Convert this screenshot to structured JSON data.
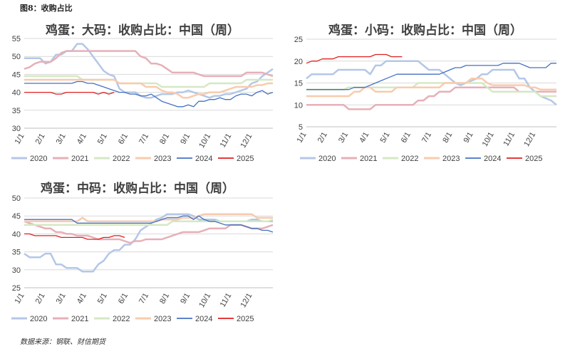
{
  "figure_label": "图8：收购占比",
  "source": "数据来源：钢联、财信期货",
  "chart_data": [
    {
      "id": "large",
      "type": "line",
      "title": "鸡蛋：大码：收购占比：中国（周）",
      "ylim": [
        30,
        55
      ],
      "yticks": [
        30,
        35,
        40,
        45,
        50,
        55
      ],
      "x_ticks": [
        "1/1",
        "2/1",
        "3/1",
        "4/1",
        "5/1",
        "6/1",
        "7/1",
        "8/1",
        "9/1",
        "10/1",
        "11/1",
        "12/1"
      ],
      "grid": true,
      "legend_position": "bottom",
      "series": [
        {
          "name": "2020",
          "color": "#b4c7e7",
          "width": 2.5,
          "values": [
            49.5,
            49.5,
            49.5,
            49.5,
            48.0,
            48.5,
            50.5,
            50.5,
            51.5,
            51.5,
            53.5,
            53.5,
            52.0,
            50.0,
            48.0,
            46.0,
            45.0,
            44.5,
            41.0,
            40.0,
            40.0,
            40.0,
            39.0,
            38.5,
            38.5,
            39.0,
            39.5,
            39.5,
            39.5,
            40.0,
            40.0,
            40.5,
            40.0,
            39.5,
            39.0,
            38.5,
            39.0,
            39.0,
            39.5,
            39.5,
            40.0,
            40.5,
            41.0,
            42.5,
            43.0,
            44.5,
            45.5,
            46.5
          ]
        },
        {
          "name": "2021",
          "color": "#e6b0b8",
          "width": 2.5,
          "values": [
            46.5,
            47.0,
            48.0,
            48.5,
            48.5,
            48.5,
            49.5,
            51.0,
            51.5,
            51.5,
            51.5,
            51.5,
            51.5,
            51.5,
            51.5,
            51.5,
            51.5,
            51.5,
            51.5,
            51.5,
            51.5,
            51.5,
            50.0,
            49.5,
            48.0,
            48.0,
            47.5,
            46.5,
            45.5,
            45.5,
            45.5,
            45.5,
            45.5,
            45.0,
            44.5,
            44.5,
            44.5,
            44.5,
            44.5,
            44.5,
            44.5,
            44.5,
            45.5,
            45.5,
            45.5,
            45.5,
            45.0,
            44.5
          ]
        },
        {
          "name": "2022",
          "color": "#d5e8c4",
          "width": 2.5,
          "values": [
            44.5,
            44.5,
            44.5,
            44.5,
            44.5,
            44.5,
            44.5,
            44.5,
            44.5,
            44.5,
            44.5,
            43.5,
            43.5,
            43.5,
            43.5,
            43.5,
            43.5,
            43.5,
            42.5,
            42.5,
            42.5,
            42.5,
            42.5,
            42.5,
            42.5,
            42.5,
            41.5,
            41.5,
            41.5,
            41.5,
            41.5,
            41.5,
            41.5,
            41.5,
            41.5,
            42.5,
            42.5,
            42.5,
            42.5,
            42.5,
            42.5,
            42.5,
            43.5,
            43.5,
            43.5,
            43.5,
            43.5,
            43.5
          ]
        },
        {
          "name": "2023",
          "color": "#f8cbad",
          "width": 2.5,
          "values": [
            43.5,
            43.5,
            43.5,
            43.5,
            43.5,
            43.5,
            43.5,
            43.5,
            43.5,
            43.5,
            43.5,
            43.5,
            43.5,
            43.5,
            43.5,
            43.5,
            43.5,
            43.5,
            42.5,
            42.5,
            42.5,
            42.5,
            42.5,
            41.5,
            41.5,
            41.5,
            40.5,
            40.0,
            40.0,
            39.5,
            38.5,
            38.5,
            39.0,
            39.5,
            39.5,
            40.0,
            40.0,
            40.0,
            40.5,
            41.0,
            41.5,
            41.5,
            41.5,
            41.5,
            42.0,
            42.0,
            42.5,
            42.5
          ]
        },
        {
          "name": "2024",
          "color": "#4472c4",
          "width": 1.3,
          "values": [
            42.5,
            42.5,
            42.5,
            42.5,
            42.5,
            42.5,
            42.5,
            42.5,
            42.5,
            42.5,
            43.0,
            43.0,
            42.5,
            42.5,
            42.0,
            41.5,
            41.0,
            40.5,
            40.0,
            40.0,
            39.5,
            39.5,
            39.0,
            39.0,
            39.5,
            38.5,
            37.5,
            37.0,
            36.5,
            36.0,
            36.0,
            36.5,
            36.0,
            37.5,
            37.5,
            38.0,
            38.0,
            38.5,
            38.0,
            38.0,
            39.0,
            39.5,
            39.5,
            39.0,
            40.0,
            40.5,
            39.5,
            40.0
          ]
        },
        {
          "name": "2025",
          "color": "#e02020",
          "width": 1.3,
          "values": [
            40.0,
            40.0,
            40.0,
            40.0,
            40.0,
            40.0,
            39.5,
            39.5,
            40.0,
            40.0,
            40.0,
            40.0,
            40.0,
            40.0,
            39.5,
            40.0,
            39.5,
            40.0,
            null,
            null,
            null,
            null,
            null,
            null,
            null,
            null,
            null,
            null,
            null,
            null,
            null,
            null,
            null,
            null,
            null,
            null,
            null,
            null,
            null,
            null,
            null,
            null,
            null,
            null,
            null,
            null,
            null,
            null
          ]
        }
      ]
    },
    {
      "id": "small",
      "type": "line",
      "title": "鸡蛋：小码：收购占比：中国（周）",
      "ylim": [
        5,
        25
      ],
      "yticks": [
        5,
        10,
        15,
        20,
        25
      ],
      "x_ticks": [
        "1/1",
        "2/1",
        "3/1",
        "4/1",
        "5/1",
        "6/1",
        "7/1",
        "8/1",
        "9/1",
        "10/1",
        "11/1",
        "12/1"
      ],
      "grid": true,
      "legend_position": "bottom",
      "series": [
        {
          "name": "2020",
          "color": "#b4c7e7",
          "width": 2.5,
          "values": [
            16.0,
            17.0,
            17.0,
            17.0,
            17.0,
            17.0,
            18.0,
            18.0,
            18.0,
            18.0,
            18.0,
            18.0,
            17.0,
            19.0,
            19.0,
            20.0,
            20.0,
            20.0,
            20.0,
            20.0,
            20.0,
            20.0,
            19.0,
            18.0,
            18.0,
            18.0,
            17.0,
            16.0,
            15.0,
            14.5,
            15.0,
            15.5,
            16.0,
            17.0,
            17.0,
            18.0,
            18.0,
            18.0,
            18.0,
            18.0,
            16.0,
            16.0,
            14.0,
            13.0,
            12.0,
            11.5,
            11.0,
            10.0
          ]
        },
        {
          "name": "2021",
          "color": "#e6b0b8",
          "width": 2.5,
          "values": [
            10.0,
            10.0,
            10.0,
            10.0,
            10.0,
            10.0,
            10.0,
            10.0,
            9.0,
            9.0,
            9.0,
            9.0,
            9.0,
            10.0,
            10.0,
            10.0,
            10.0,
            10.0,
            10.0,
            10.0,
            10.0,
            11.0,
            11.0,
            12.0,
            12.0,
            13.0,
            13.0,
            13.0,
            14.0,
            14.0,
            14.0,
            14.0,
            14.0,
            14.0,
            14.0,
            14.0,
            14.0,
            14.0,
            14.0,
            14.0,
            13.0,
            13.0,
            13.0,
            13.0,
            13.0,
            13.0,
            13.0,
            13.0
          ]
        },
        {
          "name": "2022",
          "color": "#d5e8c4",
          "width": 2.5,
          "values": [
            13.5,
            13.5,
            13.5,
            13.5,
            13.5,
            13.5,
            13.5,
            13.5,
            14.0,
            14.0,
            14.0,
            14.0,
            14.0,
            14.0,
            14.0,
            14.0,
            14.0,
            14.0,
            14.0,
            14.0,
            14.0,
            15.0,
            15.0,
            15.0,
            15.0,
            15.0,
            15.0,
            15.0,
            15.0,
            15.0,
            15.0,
            15.0,
            15.0,
            15.0,
            14.0,
            13.0,
            13.0,
            13.0,
            13.0,
            13.0,
            13.0,
            13.0,
            13.0,
            13.0,
            12.0,
            12.0,
            12.0,
            12.0
          ]
        },
        {
          "name": "2023",
          "color": "#f8cbad",
          "width": 2.5,
          "values": [
            12.0,
            12.0,
            12.0,
            12.0,
            12.0,
            12.0,
            12.0,
            12.0,
            12.0,
            13.0,
            13.0,
            14.0,
            14.0,
            13.0,
            13.0,
            13.0,
            13.0,
            14.0,
            14.0,
            14.0,
            14.0,
            14.0,
            14.0,
            14.0,
            14.0,
            14.0,
            15.0,
            15.0,
            15.0,
            15.0,
            15.0,
            16.0,
            16.0,
            16.0,
            15.0,
            14.5,
            14.5,
            14.5,
            14.5,
            14.5,
            14.5,
            14.5,
            14.0,
            14.0,
            13.5,
            13.5,
            13.5,
            13.5
          ]
        },
        {
          "name": "2024",
          "color": "#4472c4",
          "width": 1.3,
          "values": [
            13.5,
            13.5,
            13.5,
            13.5,
            13.5,
            13.5,
            13.5,
            13.5,
            13.5,
            14.0,
            14.0,
            14.0,
            14.5,
            15.0,
            15.5,
            16.0,
            16.5,
            17.0,
            17.0,
            17.0,
            17.0,
            17.0,
            17.0,
            17.0,
            17.0,
            17.0,
            17.5,
            18.0,
            18.5,
            18.5,
            19.0,
            19.0,
            19.0,
            19.0,
            19.0,
            19.0,
            19.0,
            19.5,
            19.5,
            19.5,
            19.5,
            19.0,
            18.5,
            18.5,
            18.5,
            18.5,
            19.5,
            19.5
          ]
        },
        {
          "name": "2025",
          "color": "#e02020",
          "width": 1.3,
          "values": [
            19.5,
            20.0,
            20.0,
            20.5,
            20.5,
            20.5,
            21.0,
            21.0,
            21.0,
            21.0,
            21.0,
            21.0,
            21.0,
            21.5,
            21.5,
            21.5,
            21.0,
            21.0,
            21.0,
            null,
            null,
            null,
            null,
            null,
            null,
            null,
            null,
            null,
            null,
            null,
            null,
            null,
            null,
            null,
            null,
            null,
            null,
            null,
            null,
            null,
            null,
            null,
            null,
            null,
            null,
            null,
            null,
            null
          ]
        }
      ]
    },
    {
      "id": "medium",
      "type": "line",
      "title": "鸡蛋：中码：收购占比：中国（周）",
      "ylim": [
        25,
        50
      ],
      "yticks": [
        25,
        30,
        35,
        40,
        45,
        50
      ],
      "x_ticks": [
        "1/1",
        "2/1",
        "3/1",
        "4/1",
        "5/1",
        "6/1",
        "7/1",
        "8/1",
        "9/1",
        "10/1",
        "11/1",
        "12/1"
      ],
      "grid": true,
      "legend_position": "bottom",
      "series": [
        {
          "name": "2020",
          "color": "#b4c7e7",
          "width": 2.5,
          "values": [
            34.5,
            33.5,
            33.5,
            33.5,
            34.5,
            34.5,
            31.5,
            31.5,
            30.5,
            30.5,
            30.5,
            29.5,
            29.5,
            29.5,
            31.5,
            32.5,
            34.5,
            35.5,
            35.5,
            37.0,
            37.0,
            38.5,
            41.0,
            42.0,
            43.0,
            44.0,
            44.5,
            45.5,
            45.5,
            45.5,
            45.5,
            45.5,
            45.0,
            44.0,
            44.0,
            44.0,
            44.0,
            43.5,
            43.5,
            43.5,
            43.5,
            43.5,
            43.5,
            44.0,
            44.0,
            43.5,
            43.5,
            43.5
          ]
        },
        {
          "name": "2021",
          "color": "#e6b0b8",
          "width": 2.5,
          "values": [
            43.5,
            43.0,
            42.5,
            42.0,
            41.5,
            41.5,
            40.5,
            40.5,
            40.0,
            40.0,
            39.5,
            39.5,
            39.5,
            39.0,
            38.5,
            38.5,
            38.5,
            38.5,
            38.5,
            38.0,
            37.5,
            38.0,
            38.0,
            38.5,
            38.5,
            38.5,
            38.5,
            39.0,
            39.5,
            40.0,
            40.5,
            40.5,
            40.5,
            40.5,
            41.0,
            41.5,
            41.5,
            41.5,
            41.5,
            42.5,
            42.5,
            42.5,
            42.0,
            41.5,
            41.5,
            41.5,
            42.0,
            42.5
          ]
        },
        {
          "name": "2022",
          "color": "#d5e8c4",
          "width": 2.5,
          "values": [
            42.5,
            42.5,
            42.5,
            42.5,
            42.5,
            42.5,
            42.5,
            42.5,
            42.5,
            42.5,
            42.5,
            42.5,
            42.5,
            42.5,
            42.5,
            42.5,
            42.5,
            42.5,
            42.5,
            42.5,
            42.5,
            42.5,
            42.5,
            42.5,
            42.5,
            42.5,
            42.5,
            42.5,
            43.5,
            43.5,
            43.5,
            43.5,
            43.5,
            43.5,
            43.5,
            43.5,
            43.5,
            43.5,
            43.5,
            43.5,
            43.5,
            43.5,
            43.5,
            43.5,
            43.5,
            43.5,
            43.5,
            44.0
          ]
        },
        {
          "name": "2023",
          "color": "#f8cbad",
          "width": 2.5,
          "values": [
            43.5,
            43.5,
            43.5,
            43.5,
            43.5,
            43.5,
            43.5,
            43.5,
            43.5,
            43.5,
            43.5,
            44.5,
            43.5,
            43.5,
            43.5,
            43.5,
            43.5,
            43.5,
            43.5,
            43.5,
            43.5,
            43.5,
            43.5,
            43.5,
            43.5,
            43.5,
            44.0,
            44.0,
            44.0,
            44.0,
            44.5,
            44.5,
            44.5,
            45.0,
            45.5,
            45.5,
            45.5,
            45.5,
            45.5,
            45.5,
            45.5,
            45.5,
            45.5,
            45.5,
            44.5,
            44.5,
            44.5,
            44.5
          ]
        },
        {
          "name": "2024",
          "color": "#4472c4",
          "width": 1.3,
          "values": [
            44.0,
            44.0,
            44.0,
            44.0,
            44.0,
            44.0,
            44.0,
            44.0,
            44.0,
            44.0,
            43.0,
            43.0,
            43.0,
            43.0,
            43.0,
            43.0,
            43.0,
            43.0,
            43.0,
            43.0,
            43.0,
            43.0,
            43.0,
            43.0,
            43.0,
            43.5,
            44.0,
            44.5,
            44.5,
            44.5,
            45.0,
            45.0,
            44.0,
            45.0,
            44.0,
            43.5,
            43.5,
            43.0,
            42.5,
            42.5,
            42.5,
            42.5,
            42.0,
            41.5,
            41.5,
            41.0,
            41.0,
            40.5
          ]
        },
        {
          "name": "2025",
          "color": "#e02020",
          "width": 1.3,
          "values": [
            40.0,
            40.0,
            39.5,
            39.5,
            39.5,
            39.5,
            39.5,
            39.0,
            39.0,
            39.0,
            39.0,
            39.0,
            38.5,
            38.5,
            38.5,
            39.0,
            39.0,
            39.5,
            39.5,
            39.0,
            null,
            null,
            null,
            null,
            null,
            null,
            null,
            null,
            null,
            null,
            null,
            null,
            null,
            null,
            null,
            null,
            null,
            null,
            null,
            null,
            null,
            null,
            null,
            null,
            null,
            null,
            null,
            null
          ]
        }
      ]
    }
  ]
}
